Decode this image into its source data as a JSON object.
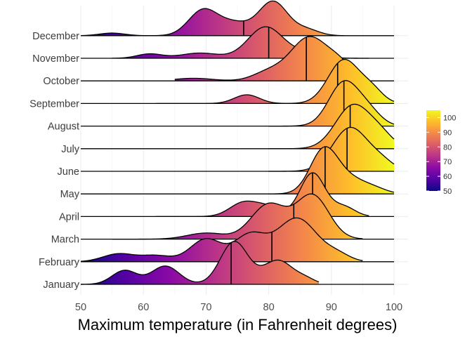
{
  "chart_data": {
    "type": "ridgeline",
    "title": "",
    "xlabel": "Maximum temperature (in Fahrenheit degrees)",
    "ylabel": "",
    "xlim": [
      50,
      100
    ],
    "x_ticks": [
      50,
      60,
      70,
      80,
      90,
      100
    ],
    "grid": true,
    "color_scale": {
      "name": "plasma",
      "min": 50,
      "max": 100,
      "ticks": [
        50,
        60,
        70,
        80,
        90,
        100
      ],
      "stops": [
        "#0d0887",
        "#5402a3",
        "#8b0aa5",
        "#b93289",
        "#db5c68",
        "#f48849",
        "#febd2a",
        "#f0f921"
      ]
    },
    "legend_position": "right",
    "series": [
      {
        "name": "January",
        "range": [
          50,
          88
        ],
        "median": 74,
        "peaks": [
          [
            57,
            0.32,
            2.0
          ],
          [
            63.5,
            0.42,
            2.2
          ],
          [
            74.5,
            0.98,
            2.2
          ],
          [
            81.5,
            0.55,
            2.4
          ],
          [
            86,
            0.1,
            1.5
          ]
        ]
      },
      {
        "name": "February",
        "range": [
          50,
          95
        ],
        "median": 80.5,
        "peaks": [
          [
            56,
            0.18,
            2.5
          ],
          [
            62,
            0.14,
            2.5
          ],
          [
            70,
            0.52,
            2.5
          ],
          [
            77,
            0.6,
            2.5
          ],
          [
            84.5,
            1.0,
            3.2
          ],
          [
            91,
            0.15,
            2.0
          ]
        ]
      },
      {
        "name": "March",
        "range": [
          55,
          95
        ],
        "median": 84,
        "peaks": [
          [
            70,
            0.14,
            3.0
          ],
          [
            80,
            0.8,
            2.8
          ],
          [
            87,
            1.0,
            2.6
          ]
        ]
      },
      {
        "name": "April",
        "range": [
          62,
          96
        ],
        "median": 87,
        "peaks": [
          [
            76,
            0.32,
            2.2
          ],
          [
            80,
            0.2,
            2.0
          ],
          [
            87,
            1.0,
            2.0
          ],
          [
            92,
            0.22,
            1.8
          ]
        ]
      },
      {
        "name": "May",
        "range": [
          80,
          100
        ],
        "median": 89,
        "peaks": [
          [
            88.8,
            1.0,
            2.2
          ],
          [
            93,
            0.32,
            2.5
          ],
          [
            97,
            0.1,
            2.0
          ]
        ]
      },
      {
        "name": "June",
        "range": [
          80,
          100
        ],
        "median": 92.5,
        "peaks": [
          [
            93,
            1.0,
            2.8
          ],
          [
            98,
            0.2,
            2.0
          ]
        ]
      },
      {
        "name": "July",
        "range": [
          80,
          100
        ],
        "median": 93,
        "peaks": [
          [
            93.5,
            1.0,
            2.8
          ],
          [
            98,
            0.25,
            2.0
          ]
        ]
      },
      {
        "name": "August",
        "range": [
          80,
          100
        ],
        "median": 92,
        "peaks": [
          [
            92,
            1.0,
            2.4
          ],
          [
            96,
            0.3,
            2.0
          ]
        ]
      },
      {
        "name": "September",
        "range": [
          62,
          100
        ],
        "median": 91,
        "peaks": [
          [
            76.5,
            0.2,
            2.0
          ],
          [
            92,
            1.0,
            2.5
          ],
          [
            96.5,
            0.28,
            1.8
          ]
        ]
      },
      {
        "name": "October",
        "range": [
          65,
          96
        ],
        "median": 86,
        "peaks": [
          [
            68,
            0.06,
            3.0
          ],
          [
            80,
            0.2,
            2.5
          ],
          [
            86.5,
            1.0,
            3.0
          ],
          [
            91.5,
            0.3,
            2.0
          ]
        ]
      },
      {
        "name": "November",
        "range": [
          55,
          96
        ],
        "median": 80,
        "peaks": [
          [
            61,
            0.1,
            2.0
          ],
          [
            69,
            0.12,
            3.0
          ],
          [
            79.5,
            0.72,
            2.8
          ],
          [
            86,
            0.12,
            2.5
          ]
        ]
      },
      {
        "name": "December",
        "range": [
          50,
          92
        ],
        "median": 76,
        "peaks": [
          [
            55,
            0.06,
            2.0
          ],
          [
            69.5,
            0.58,
            2.3
          ],
          [
            74.5,
            0.28,
            2.5
          ],
          [
            80.7,
            0.78,
            2.3
          ],
          [
            86,
            0.14,
            2.0
          ]
        ]
      }
    ]
  }
}
